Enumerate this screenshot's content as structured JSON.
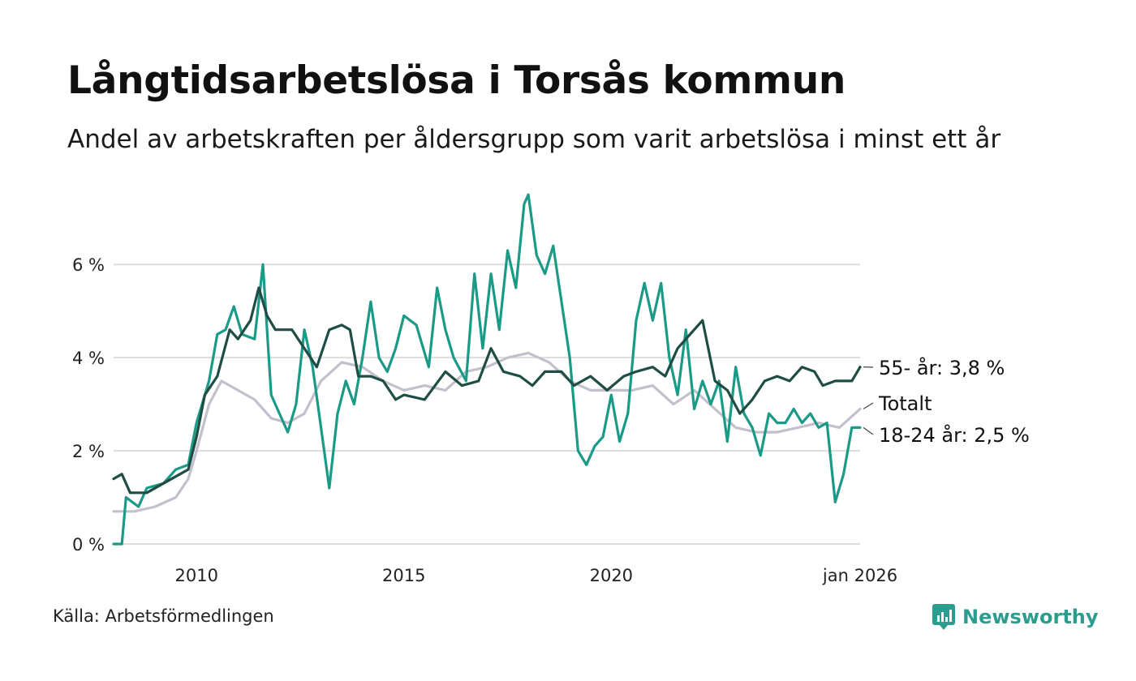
{
  "title": "Långtidsarbetslösa i Torsås kommun",
  "subtitle": "Andel av arbetskraften per åldersgrupp som varit arbetslösa i minst ett år",
  "source": "Källa: Arbetsförmedlingen",
  "brand": "Newsworthy",
  "colors": {
    "total": "#c2c0cc",
    "young": "#1a9a87",
    "old": "#1f4d44",
    "grid": "#dddddd"
  },
  "chart_data": {
    "type": "line",
    "title": "Långtidsarbetslösa i Torsås kommun",
    "xlabel": "",
    "ylabel": "",
    "xlim": [
      2008.0,
      2026.0
    ],
    "ylim": [
      0,
      8
    ],
    "yticks": [
      0,
      2,
      4,
      6
    ],
    "ytick_labels": [
      "0 %",
      "2 %",
      "4 %",
      "6 %"
    ],
    "xticks": [
      2010,
      2015,
      2020,
      2026
    ],
    "xtick_labels": [
      "2010",
      "2015",
      "2020",
      "jan 2026"
    ],
    "grid": true,
    "series": [
      {
        "name": "Totalt",
        "label": "Totalt",
        "color": "#c2c0cc",
        "points": [
          [
            2008.0,
            0.7
          ],
          [
            2008.5,
            0.7
          ],
          [
            2009.0,
            0.8
          ],
          [
            2009.5,
            1.0
          ],
          [
            2009.8,
            1.4
          ],
          [
            2010.0,
            2.0
          ],
          [
            2010.3,
            3.0
          ],
          [
            2010.6,
            3.5
          ],
          [
            2011.0,
            3.3
          ],
          [
            2011.4,
            3.1
          ],
          [
            2011.8,
            2.7
          ],
          [
            2012.2,
            2.6
          ],
          [
            2012.6,
            2.8
          ],
          [
            2013.0,
            3.5
          ],
          [
            2013.5,
            3.9
          ],
          [
            2014.0,
            3.8
          ],
          [
            2014.5,
            3.5
          ],
          [
            2015.0,
            3.3
          ],
          [
            2015.5,
            3.4
          ],
          [
            2016.0,
            3.3
          ],
          [
            2016.5,
            3.7
          ],
          [
            2017.0,
            3.8
          ],
          [
            2017.5,
            4.0
          ],
          [
            2018.0,
            4.1
          ],
          [
            2018.5,
            3.9
          ],
          [
            2019.0,
            3.5
          ],
          [
            2019.5,
            3.3
          ],
          [
            2020.0,
            3.3
          ],
          [
            2020.5,
            3.3
          ],
          [
            2021.0,
            3.4
          ],
          [
            2021.5,
            3.0
          ],
          [
            2022.0,
            3.3
          ],
          [
            2022.5,
            2.9
          ],
          [
            2023.0,
            2.5
          ],
          [
            2023.5,
            2.4
          ],
          [
            2024.0,
            2.4
          ],
          [
            2024.5,
            2.5
          ],
          [
            2025.0,
            2.6
          ],
          [
            2025.5,
            2.5
          ],
          [
            2026.0,
            2.9
          ]
        ]
      },
      {
        "name": "18-24 år",
        "label": "18-24 år: 2,5 %",
        "color": "#1a9a87",
        "points": [
          [
            2008.0,
            0.0
          ],
          [
            2008.2,
            0.0
          ],
          [
            2008.3,
            1.0
          ],
          [
            2008.6,
            0.8
          ],
          [
            2008.8,
            1.2
          ],
          [
            2009.2,
            1.3
          ],
          [
            2009.5,
            1.6
          ],
          [
            2009.8,
            1.7
          ],
          [
            2010.0,
            2.6
          ],
          [
            2010.3,
            3.5
          ],
          [
            2010.5,
            4.5
          ],
          [
            2010.7,
            4.6
          ],
          [
            2010.9,
            5.1
          ],
          [
            2011.1,
            4.5
          ],
          [
            2011.4,
            4.4
          ],
          [
            2011.6,
            6.0
          ],
          [
            2011.8,
            3.2
          ],
          [
            2012.0,
            2.8
          ],
          [
            2012.2,
            2.4
          ],
          [
            2012.4,
            3.0
          ],
          [
            2012.6,
            4.6
          ],
          [
            2012.8,
            3.8
          ],
          [
            2013.0,
            2.5
          ],
          [
            2013.2,
            1.2
          ],
          [
            2013.4,
            2.8
          ],
          [
            2013.6,
            3.5
          ],
          [
            2013.8,
            3.0
          ],
          [
            2014.0,
            4.0
          ],
          [
            2014.2,
            5.2
          ],
          [
            2014.4,
            4.0
          ],
          [
            2014.6,
            3.7
          ],
          [
            2014.8,
            4.2
          ],
          [
            2015.0,
            4.9
          ],
          [
            2015.3,
            4.7
          ],
          [
            2015.6,
            3.8
          ],
          [
            2015.8,
            5.5
          ],
          [
            2016.0,
            4.6
          ],
          [
            2016.2,
            4.0
          ],
          [
            2016.5,
            3.5
          ],
          [
            2016.7,
            5.8
          ],
          [
            2016.9,
            4.2
          ],
          [
            2017.1,
            5.8
          ],
          [
            2017.3,
            4.6
          ],
          [
            2017.5,
            6.3
          ],
          [
            2017.7,
            5.5
          ],
          [
            2017.9,
            7.3
          ],
          [
            2018.0,
            7.5
          ],
          [
            2018.2,
            6.2
          ],
          [
            2018.4,
            5.8
          ],
          [
            2018.6,
            6.4
          ],
          [
            2018.8,
            5.2
          ],
          [
            2019.0,
            4.0
          ],
          [
            2019.2,
            2.0
          ],
          [
            2019.4,
            1.7
          ],
          [
            2019.6,
            2.1
          ],
          [
            2019.8,
            2.3
          ],
          [
            2020.0,
            3.2
          ],
          [
            2020.2,
            2.2
          ],
          [
            2020.4,
            2.8
          ],
          [
            2020.6,
            4.8
          ],
          [
            2020.8,
            5.6
          ],
          [
            2021.0,
            4.8
          ],
          [
            2021.2,
            5.6
          ],
          [
            2021.4,
            4.0
          ],
          [
            2021.6,
            3.2
          ],
          [
            2021.8,
            4.6
          ],
          [
            2022.0,
            2.9
          ],
          [
            2022.2,
            3.5
          ],
          [
            2022.4,
            3.0
          ],
          [
            2022.6,
            3.5
          ],
          [
            2022.8,
            2.2
          ],
          [
            2023.0,
            3.8
          ],
          [
            2023.2,
            2.8
          ],
          [
            2023.4,
            2.5
          ],
          [
            2023.6,
            1.9
          ],
          [
            2023.8,
            2.8
          ],
          [
            2024.0,
            2.6
          ],
          [
            2024.2,
            2.6
          ],
          [
            2024.4,
            2.9
          ],
          [
            2024.6,
            2.6
          ],
          [
            2024.8,
            2.8
          ],
          [
            2025.0,
            2.5
          ],
          [
            2025.2,
            2.6
          ],
          [
            2025.4,
            0.9
          ],
          [
            2025.6,
            1.5
          ],
          [
            2025.8,
            2.5
          ],
          [
            2026.0,
            2.5
          ]
        ]
      },
      {
        "name": "55- år",
        "label": "55- år: 3,8 %",
        "color": "#1f4d44",
        "points": [
          [
            2008.0,
            1.4
          ],
          [
            2008.2,
            1.5
          ],
          [
            2008.4,
            1.1
          ],
          [
            2008.8,
            1.1
          ],
          [
            2009.2,
            1.3
          ],
          [
            2009.6,
            1.5
          ],
          [
            2009.8,
            1.6
          ],
          [
            2010.0,
            2.3
          ],
          [
            2010.2,
            3.2
          ],
          [
            2010.5,
            3.6
          ],
          [
            2010.8,
            4.6
          ],
          [
            2011.0,
            4.4
          ],
          [
            2011.3,
            4.8
          ],
          [
            2011.5,
            5.5
          ],
          [
            2011.7,
            4.9
          ],
          [
            2011.9,
            4.6
          ],
          [
            2012.3,
            4.6
          ],
          [
            2012.6,
            4.2
          ],
          [
            2012.9,
            3.8
          ],
          [
            2013.2,
            4.6
          ],
          [
            2013.5,
            4.7
          ],
          [
            2013.7,
            4.6
          ],
          [
            2013.9,
            3.6
          ],
          [
            2014.2,
            3.6
          ],
          [
            2014.5,
            3.5
          ],
          [
            2014.8,
            3.1
          ],
          [
            2015.0,
            3.2
          ],
          [
            2015.5,
            3.1
          ],
          [
            2016.0,
            3.7
          ],
          [
            2016.4,
            3.4
          ],
          [
            2016.8,
            3.5
          ],
          [
            2017.1,
            4.2
          ],
          [
            2017.4,
            3.7
          ],
          [
            2017.8,
            3.6
          ],
          [
            2018.1,
            3.4
          ],
          [
            2018.4,
            3.7
          ],
          [
            2018.8,
            3.7
          ],
          [
            2019.1,
            3.4
          ],
          [
            2019.5,
            3.6
          ],
          [
            2019.9,
            3.3
          ],
          [
            2020.3,
            3.6
          ],
          [
            2020.6,
            3.7
          ],
          [
            2021.0,
            3.8
          ],
          [
            2021.3,
            3.6
          ],
          [
            2021.6,
            4.2
          ],
          [
            2021.9,
            4.5
          ],
          [
            2022.2,
            4.8
          ],
          [
            2022.5,
            3.5
          ],
          [
            2022.8,
            3.3
          ],
          [
            2023.1,
            2.8
          ],
          [
            2023.4,
            3.1
          ],
          [
            2023.7,
            3.5
          ],
          [
            2024.0,
            3.6
          ],
          [
            2024.3,
            3.5
          ],
          [
            2024.6,
            3.8
          ],
          [
            2024.9,
            3.7
          ],
          [
            2025.1,
            3.4
          ],
          [
            2025.4,
            3.5
          ],
          [
            2025.6,
            3.5
          ],
          [
            2025.8,
            3.5
          ],
          [
            2026.0,
            3.8
          ]
        ]
      }
    ]
  }
}
